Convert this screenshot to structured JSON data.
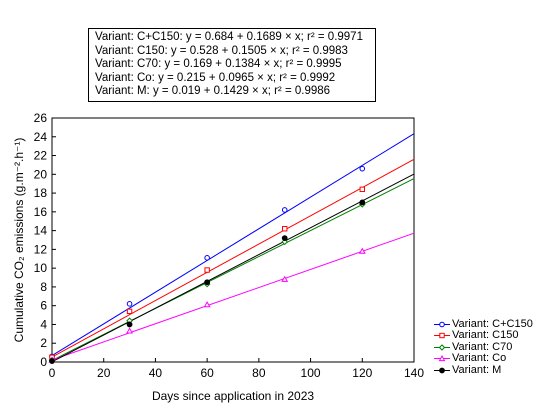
{
  "equations": [
    "Variant: C+C150: y = 0.684 + 0.1689 × x; r² = 0.9971",
    "Variant: C150: y = 0.528 + 0.1505 × x; r² = 0.9983",
    "Variant: C70: y = 0.169 + 0.1384 × x; r² = 0.9995",
    "Variant: Co: y = 0.215 + 0.0965 × x; r² = 0.9992",
    "Variant: M: y = 0.019 + 0.1429 × x; r² = 0.9986"
  ],
  "chart_data": {
    "type": "scatter",
    "xlabel": "Days since application in 2023",
    "ylabel": "Cumulative CO₂ emissions (g.m⁻².h⁻¹)",
    "xlim": [
      0,
      140
    ],
    "ylim": [
      0,
      26
    ],
    "xticks": [
      0,
      20,
      40,
      60,
      80,
      100,
      120,
      140
    ],
    "yticks": [
      0,
      2,
      4,
      6,
      8,
      10,
      12,
      14,
      16,
      18,
      20,
      22,
      24,
      26
    ],
    "grid": false,
    "legend_position": "bottom-right, outside plot",
    "series": [
      {
        "name": "Variant: C+C150",
        "color": "#0000ff",
        "marker": "circle",
        "x": [
          0,
          30,
          60,
          90,
          120
        ],
        "y": [
          0.6,
          6.2,
          11.1,
          16.2,
          20.6
        ],
        "fit": {
          "intercept": 0.684,
          "slope": 0.1689
        }
      },
      {
        "name": "Variant: C150",
        "color": "#ff0000",
        "marker": "square",
        "x": [
          0,
          30,
          60,
          90,
          120
        ],
        "y": [
          0.5,
          5.4,
          9.8,
          14.2,
          18.4
        ],
        "fit": {
          "intercept": 0.528,
          "slope": 0.1505
        }
      },
      {
        "name": "Variant: C70",
        "color": "#008000",
        "marker": "diamond",
        "x": [
          0,
          30,
          60,
          90,
          120
        ],
        "y": [
          0.2,
          4.4,
          8.3,
          12.8,
          16.8
        ],
        "fit": {
          "intercept": 0.169,
          "slope": 0.1384
        }
      },
      {
        "name": "Variant: Co",
        "color": "#ff00ff",
        "marker": "triangle",
        "x": [
          0,
          30,
          60,
          90,
          120
        ],
        "y": [
          0.2,
          3.3,
          6.1,
          8.8,
          11.8
        ],
        "fit": {
          "intercept": 0.215,
          "slope": 0.0965
        }
      },
      {
        "name": "Variant: M",
        "color": "#000000",
        "marker": "filled-circle",
        "x": [
          0,
          30,
          60,
          90,
          120
        ],
        "y": [
          0.1,
          4.0,
          8.5,
          13.2,
          17.0
        ],
        "fit": {
          "intercept": 0.019,
          "slope": 0.1429
        }
      }
    ]
  }
}
